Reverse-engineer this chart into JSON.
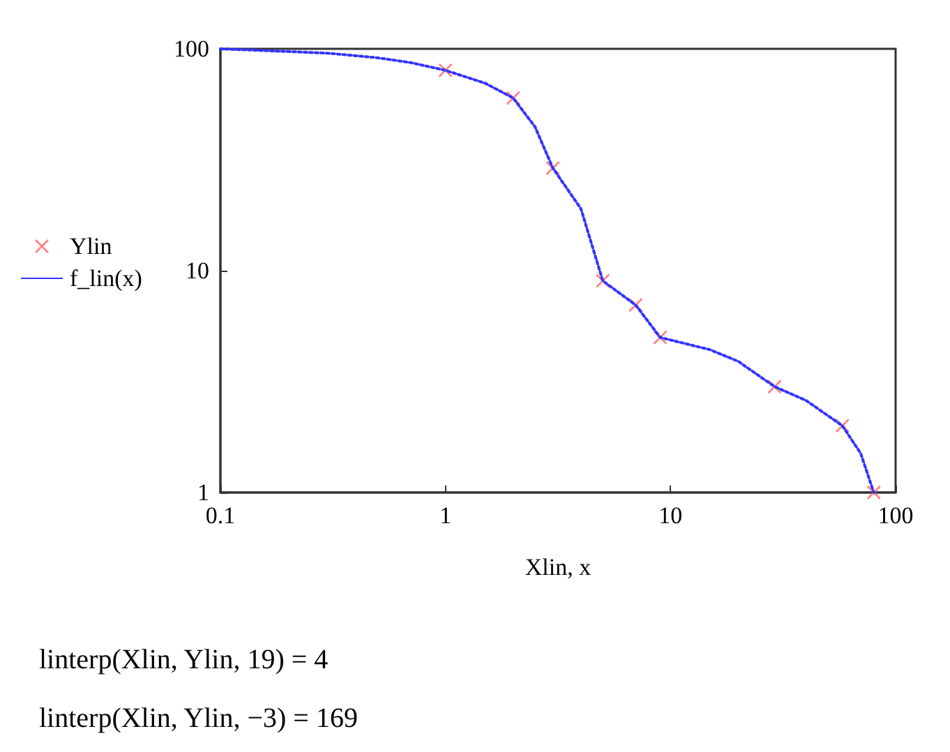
{
  "chart_data": {
    "type": "scatter",
    "xlabel": "Xlin, x",
    "log": "xy",
    "xlim": [
      0.1,
      100
    ],
    "xticks": [
      0.1,
      1,
      10,
      100
    ],
    "ylim": [
      1,
      100
    ],
    "yticks": [
      1,
      10,
      100
    ],
    "grid": false,
    "legend": "left",
    "series": [
      {
        "name": "Ylin",
        "marker": "cross",
        "color": "#ff6666",
        "x": [
          1,
          2,
          3,
          5,
          7,
          9,
          29,
          58,
          80
        ],
        "values": [
          80,
          60,
          29,
          9,
          7,
          5,
          3,
          2,
          1
        ]
      },
      {
        "name": "f_lin(x)",
        "type": "line",
        "marker": "none",
        "line_style": "dotted",
        "color": "#3333ff",
        "x": [
          0.1,
          0.3,
          0.5,
          0.7,
          1,
          1.5,
          2,
          2.5,
          3,
          4,
          5,
          7,
          9,
          15,
          20,
          29,
          40,
          58,
          70,
          80
        ],
        "values": [
          100,
          95.6,
          91.1,
          86.7,
          80,
          70,
          60,
          44.5,
          29,
          19,
          9,
          7,
          5,
          4.4,
          3.9,
          3,
          2.6,
          2,
          1.5,
          1
        ]
      }
    ],
    "annotations": [
      "linterp(Xlin, Ylin, 19) = 4",
      "linterp(Xlin, Ylin, −3) = 169"
    ]
  }
}
